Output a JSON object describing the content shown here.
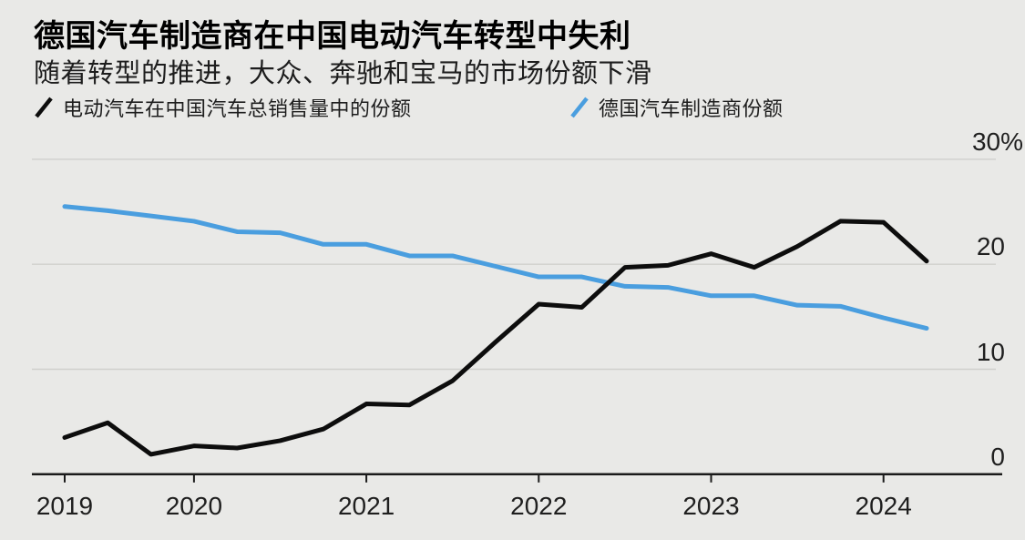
{
  "header": {
    "title": "德国汽车制造商在中国电动汽车转型中失利",
    "subtitle": "随着转型的推进，大众、奔驰和宝马的市场份额下滑"
  },
  "legend": [
    {
      "label": "电动汽车在中国汽车总销售量中的份额",
      "color": "#0d0d0d"
    },
    {
      "label": "德国汽车制造商份额",
      "color": "#4a9edf"
    }
  ],
  "colors": {
    "background": "#e9e9e7",
    "gridline": "#d0d0cd",
    "axis": "#1a1a1a",
    "ev_line": "#0d0d0d",
    "german_line": "#4a9edf"
  },
  "chart_data": {
    "type": "line",
    "title": "德国汽车制造商在中国电动汽车转型中失利",
    "subtitle": "随着转型的推进，大众、奔驰和宝马的市场份额下滑",
    "unit": "%",
    "ylim": [
      0,
      30
    ],
    "grid": "horizontal",
    "legend_position": "top",
    "x": [
      "2019 Q1",
      "2019 Q2",
      "2019 Q3",
      "2019 Q4",
      "2020 Q1",
      "2020 Q2",
      "2020 Q3",
      "2020 Q4",
      "2021 Q1",
      "2021 Q2",
      "2021 Q3",
      "2021 Q4",
      "2022 Q1",
      "2022 Q2",
      "2022 Q3",
      "2022 Q4",
      "2023 Q1",
      "2023 Q2",
      "2023 Q3",
      "2023 Q4",
      "2024 Q1"
    ],
    "x_ticks": [
      {
        "label": "2019",
        "q": 0
      },
      {
        "label": "2020",
        "q": 3
      },
      {
        "label": "2021",
        "q": 7
      },
      {
        "label": "2022",
        "q": 11
      },
      {
        "label": "2023",
        "q": 15
      },
      {
        "label": "2024",
        "q": 19
      }
    ],
    "y_ticks": [
      {
        "label": "30%",
        "value": 30
      },
      {
        "label": "20",
        "value": 20
      },
      {
        "label": "10",
        "value": 10
      },
      {
        "label": "0",
        "value": 0
      }
    ],
    "series": [
      {
        "id": "ev-share",
        "name": "电动汽车在中国汽车总销售量中的份额",
        "color": "#0d0d0d",
        "values": [
          3.5,
          4.9,
          1.9,
          2.7,
          2.5,
          3.2,
          4.3,
          6.7,
          6.6,
          8.9,
          12.6,
          16.2,
          15.9,
          19.7,
          19.9,
          21.0,
          19.7,
          21.7,
          24.1,
          24.0,
          20.3
        ]
      },
      {
        "id": "german-share",
        "name": "德国汽车制造商份额",
        "color": "#4a9edf",
        "values": [
          25.5,
          25.1,
          24.6,
          24.1,
          23.1,
          23.0,
          21.9,
          21.9,
          20.8,
          20.8,
          19.8,
          18.8,
          18.8,
          17.9,
          17.8,
          17.0,
          17.0,
          16.1,
          16.0,
          14.9,
          13.9
        ]
      }
    ]
  }
}
